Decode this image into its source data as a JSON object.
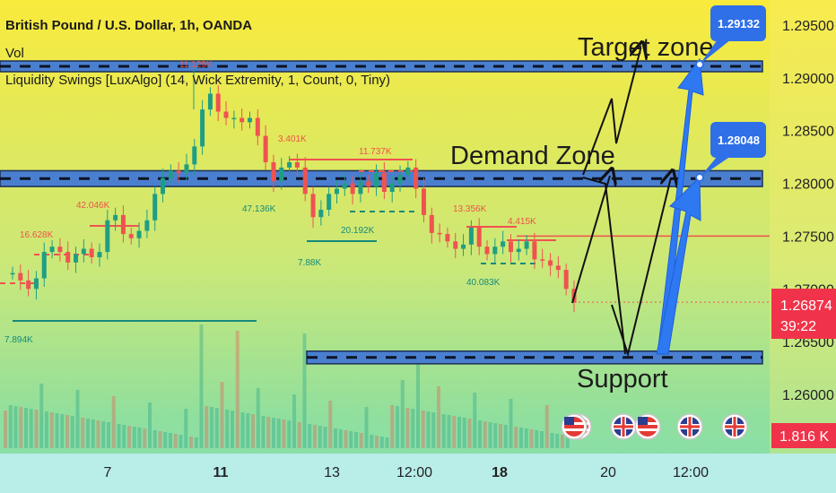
{
  "header": {
    "symbol": "British Pound / U.S. Dollar, 1h, OANDA",
    "vol_label": "Vol",
    "indicator": "Liquidity Swings [LuxAlgo] (14, Wick Extremity, 1, Count, 0, Tiny)"
  },
  "chart_data": {
    "type": "candlestick",
    "yaxis": {
      "ticks": [
        "1.29500",
        "1.29000",
        "1.28500",
        "1.28000",
        "1.27500",
        "1.27000",
        "1.26500",
        "1.26000"
      ],
      "range": [
        1.2568,
        1.299
      ]
    },
    "xaxis": {
      "ticks": [
        "7",
        "11",
        "13",
        "12:00",
        "18",
        "20",
        "12:00"
      ]
    },
    "price_badges": {
      "current": "1.26874",
      "countdown": "39:22",
      "volume": "1.816 K",
      "target_1": "1.29132",
      "target_2": "1.28048"
    },
    "zones": [
      {
        "label": "Target zone",
        "top": 1.2916,
        "bottom": 1.2906
      },
      {
        "label": "Demand Zone",
        "top": 1.2812,
        "bottom": 1.2797
      },
      {
        "label": "Support",
        "top": 1.2641,
        "bottom": 1.2629
      }
    ],
    "swing_labels": [
      {
        "text": "16.628K",
        "color": "#f0524a"
      },
      {
        "text": "42.046K",
        "color": "#f0524a"
      },
      {
        "text": "11.129K",
        "color": "#f0524a"
      },
      {
        "text": "3.401K",
        "color": "#f0524a"
      },
      {
        "text": "11.737K",
        "color": "#f0524a"
      },
      {
        "text": "13.356K",
        "color": "#f0524a"
      },
      {
        "text": "4.415K",
        "color": "#f0524a"
      },
      {
        "text": "7.894K",
        "color": "#158a7a"
      },
      {
        "text": "47.136K",
        "color": "#158a7a"
      },
      {
        "text": "7.88K",
        "color": "#158a7a"
      },
      {
        "text": "20.192K",
        "color": "#158a7a"
      },
      {
        "text": "40.083K",
        "color": "#158a7a"
      }
    ],
    "close_path": [
      1.2715,
      1.2708,
      1.27,
      1.271,
      1.2735,
      1.274,
      1.2735,
      1.2725,
      1.2733,
      1.2738,
      1.273,
      1.2735,
      1.2765,
      1.277,
      1.2752,
      1.2748,
      1.2755,
      1.2765,
      1.279,
      1.2805,
      1.2812,
      1.281,
      1.2818,
      1.2835,
      1.287,
      1.2885,
      1.2868,
      1.2862,
      1.2862,
      1.2858,
      1.2862,
      1.2845,
      1.282,
      1.2802,
      1.2815,
      1.282,
      1.2815,
      1.279,
      1.2768,
      1.2775,
      1.279,
      1.2795,
      1.28,
      1.279,
      1.2802,
      1.2797,
      1.281,
      1.2792,
      1.28,
      1.2808,
      1.2815,
      1.2795,
      1.277,
      1.2753,
      1.2752,
      1.2745,
      1.2738,
      1.2742,
      1.2758,
      1.274,
      1.2733,
      1.274,
      1.2745,
      1.2735,
      1.2738,
      1.2745,
      1.2728,
      1.2727,
      1.2722,
      1.2718,
      1.27,
      1.2687
    ],
    "colors": {
      "bull": "#1f9e84",
      "bear": "#ef5350",
      "zone": "#4a7fd0",
      "badge_blue": "#2f6fe8",
      "badge_red": "#f0334a",
      "arrow_blue": "#2e78f2"
    }
  }
}
